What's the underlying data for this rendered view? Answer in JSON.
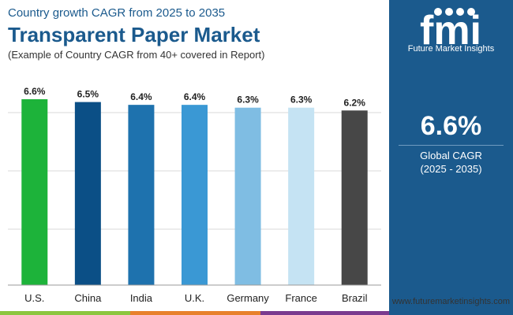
{
  "header": {
    "kicker": "Country growth CAGR from 2025 to 2035",
    "title": "Transparent Paper Market",
    "subtitle": "(Example of Country CAGR from 40+ covered in Report)"
  },
  "chart_data": {
    "type": "bar",
    "categories": [
      "U.S.",
      "China",
      "India",
      "U.K.",
      "Germany",
      "France",
      "Brazil"
    ],
    "values": [
      6.6,
      6.5,
      6.4,
      6.4,
      6.3,
      6.3,
      6.2
    ],
    "data_labels": [
      "6.6%",
      "6.5%",
      "6.4%",
      "6.4%",
      "6.3%",
      "6.3%",
      "6.2%"
    ],
    "colors": [
      "#1db33a",
      "#0b4f86",
      "#1e72ae",
      "#3a98d4",
      "#7fbde3",
      "#c5e3f3",
      "#474747"
    ],
    "ylim": [
      0,
      6.6
    ],
    "grid": true,
    "legend": "none"
  },
  "sidebar": {
    "logo_alt": "fmi",
    "logo_text": "Future Market Insights",
    "big_value": "6.6%",
    "label1": "Global CAGR",
    "label2": "(2025 - 2035)"
  },
  "footer": {
    "website": "www.futuremarketinsights.com",
    "bar_colors": [
      "#8cc63f",
      "#e8812c",
      "#7a3b8f"
    ]
  },
  "colors": {
    "brand": "#1b5a8d",
    "grid": "#d9d9d9"
  }
}
